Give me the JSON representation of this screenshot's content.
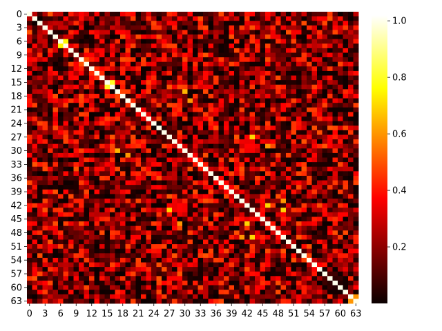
{
  "chart_data": {
    "type": "heatmap",
    "title": "",
    "xlabel": "",
    "ylabel": "",
    "size": 64,
    "x_tick_labels": [
      "0",
      "3",
      "6",
      "9",
      "12",
      "15",
      "18",
      "21",
      "24",
      "27",
      "30",
      "33",
      "36",
      "39",
      "42",
      "45",
      "48",
      "51",
      "54",
      "57",
      "60",
      "63"
    ],
    "y_tick_labels": [
      "0",
      "3",
      "6",
      "9",
      "12",
      "15",
      "18",
      "21",
      "24",
      "27",
      "30",
      "33",
      "36",
      "39",
      "42",
      "45",
      "48",
      "51",
      "54",
      "57",
      "60",
      "63"
    ],
    "colormap": "hot",
    "vmin": 0.0,
    "vmax": 1.02,
    "colorbar_ticks": [
      0.2,
      0.4,
      0.6,
      0.8,
      1.0
    ],
    "colorbar_labels": [
      "0.2",
      "0.4",
      "0.6",
      "0.8",
      "1.0"
    ],
    "diagonal_value": 1.0,
    "off_diagonal_typical_range": [
      0.0,
      0.5
    ],
    "notable_cells": [
      {
        "row": 6,
        "col": 7,
        "value": 0.75
      },
      {
        "row": 7,
        "col": 6,
        "value": 0.75
      },
      {
        "row": 15,
        "col": 16,
        "value": 0.8
      },
      {
        "row": 16,
        "col": 15,
        "value": 0.8
      },
      {
        "row": 63,
        "col": 62,
        "value": 0.6
      },
      {
        "row": 62,
        "col": 63,
        "value": 0.6
      },
      {
        "row": 17,
        "col": 30,
        "value": 0.65
      },
      {
        "row": 30,
        "col": 17,
        "value": 0.65
      },
      {
        "row": 43,
        "col": 27,
        "value": 0.7
      },
      {
        "row": 27,
        "col": 43,
        "value": 0.7
      },
      {
        "row": 43,
        "col": 49,
        "value": 0.7
      },
      {
        "row": 49,
        "col": 43,
        "value": 0.7
      },
      {
        "row": 46,
        "col": 42,
        "value": 0.7
      },
      {
        "row": 42,
        "col": 46,
        "value": 0.7
      },
      {
        "row": 31,
        "col": 19,
        "value": 0.6
      },
      {
        "row": 19,
        "col": 31,
        "value": 0.6
      },
      {
        "row": 29,
        "col": 46,
        "value": 0.6
      },
      {
        "row": 46,
        "col": 29,
        "value": 0.6
      },
      {
        "row": 41,
        "col": 49,
        "value": 0.6
      },
      {
        "row": 49,
        "col": 41,
        "value": 0.6
      }
    ]
  }
}
